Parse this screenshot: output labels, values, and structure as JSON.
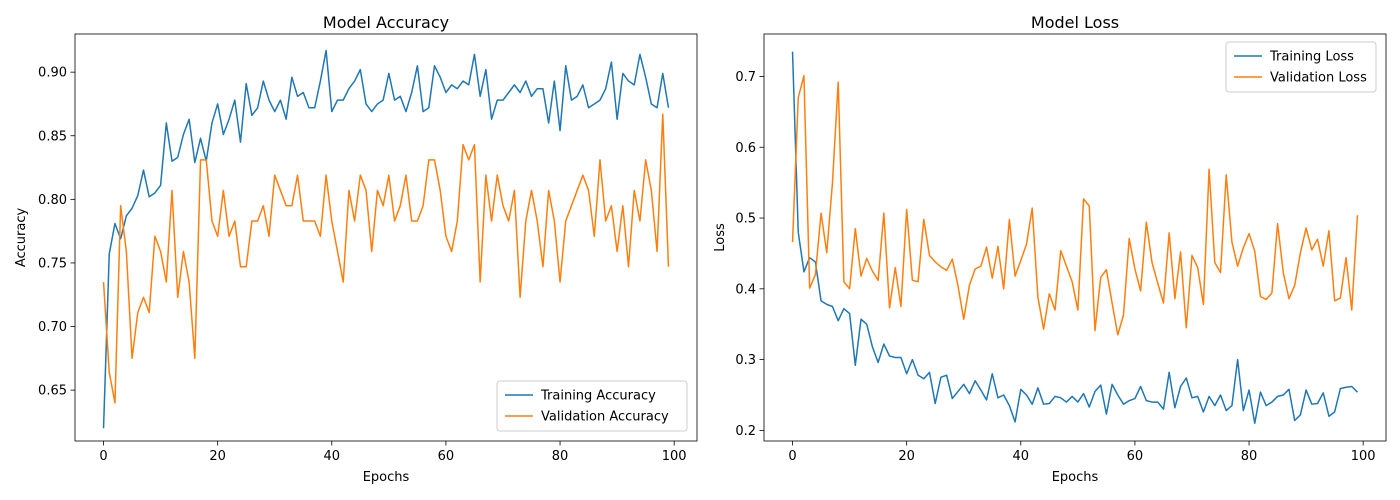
{
  "chart_data": [
    {
      "type": "line",
      "title": "Model Accuracy",
      "xlabel": "Epochs",
      "ylabel": "Accuracy",
      "xlim": [
        -5,
        104
      ],
      "ylim": [
        0.61,
        0.93
      ],
      "xticks": [
        0,
        20,
        40,
        60,
        80,
        100
      ],
      "yticks": [
        0.65,
        0.7,
        0.75,
        0.8,
        0.85,
        0.9
      ],
      "ytick_labels": [
        "0.65",
        "0.70",
        "0.75",
        "0.80",
        "0.85",
        "0.90"
      ],
      "grid": false,
      "legend_position": "lower-right",
      "series": [
        {
          "name": "Training Accuracy",
          "color": "#1f77b4",
          "values": [
            0.62,
            0.757,
            0.781,
            0.769,
            0.787,
            0.793,
            0.803,
            0.823,
            0.802,
            0.805,
            0.811,
            0.86,
            0.83,
            0.833,
            0.851,
            0.863,
            0.829,
            0.848,
            0.83,
            0.86,
            0.875,
            0.851,
            0.863,
            0.878,
            0.845,
            0.891,
            0.866,
            0.872,
            0.893,
            0.878,
            0.869,
            0.878,
            0.863,
            0.896,
            0.881,
            0.884,
            0.872,
            0.872,
            0.893,
            0.917,
            0.869,
            0.878,
            0.878,
            0.887,
            0.893,
            0.902,
            0.875,
            0.869,
            0.875,
            0.878,
            0.899,
            0.878,
            0.881,
            0.869,
            0.884,
            0.905,
            0.869,
            0.872,
            0.905,
            0.896,
            0.884,
            0.89,
            0.887,
            0.893,
            0.89,
            0.914,
            0.881,
            0.902,
            0.863,
            0.878,
            0.878,
            0.884,
            0.89,
            0.884,
            0.893,
            0.881,
            0.887,
            0.887,
            0.86,
            0.893,
            0.854,
            0.905,
            0.878,
            0.881,
            0.89,
            0.872,
            0.875,
            0.878,
            0.887,
            0.908,
            0.863,
            0.899,
            0.893,
            0.89,
            0.914,
            0.896,
            0.875,
            0.872,
            0.899,
            0.872
          ]
        },
        {
          "name": "Validation Accuracy",
          "color": "#ff7f0e",
          "values": [
            0.735,
            0.664,
            0.64,
            0.795,
            0.759,
            0.675,
            0.711,
            0.723,
            0.711,
            0.771,
            0.759,
            0.735,
            0.807,
            0.723,
            0.759,
            0.735,
            0.675,
            0.831,
            0.831,
            0.783,
            0.771,
            0.807,
            0.771,
            0.783,
            0.747,
            0.747,
            0.783,
            0.783,
            0.795,
            0.771,
            0.819,
            0.807,
            0.795,
            0.795,
            0.819,
            0.783,
            0.783,
            0.783,
            0.771,
            0.819,
            0.783,
            0.759,
            0.735,
            0.807,
            0.783,
            0.819,
            0.807,
            0.759,
            0.807,
            0.795,
            0.819,
            0.783,
            0.795,
            0.819,
            0.783,
            0.783,
            0.795,
            0.831,
            0.831,
            0.807,
            0.771,
            0.759,
            0.783,
            0.843,
            0.831,
            0.843,
            0.735,
            0.819,
            0.783,
            0.819,
            0.795,
            0.783,
            0.807,
            0.723,
            0.783,
            0.807,
            0.783,
            0.747,
            0.807,
            0.783,
            0.735,
            0.783,
            0.795,
            0.807,
            0.819,
            0.807,
            0.771,
            0.831,
            0.783,
            0.795,
            0.759,
            0.795,
            0.747,
            0.807,
            0.783,
            0.831,
            0.807,
            0.759,
            0.867,
            0.747
          ]
        }
      ]
    },
    {
      "type": "line",
      "title": "Model Loss",
      "xlabel": "Epochs",
      "ylabel": "Loss",
      "xlim": [
        -5,
        104
      ],
      "ylim": [
        0.185,
        0.76
      ],
      "xticks": [
        0,
        20,
        40,
        60,
        80,
        100
      ],
      "yticks": [
        0.2,
        0.3,
        0.4,
        0.5,
        0.6,
        0.7
      ],
      "ytick_labels": [
        "0.2",
        "0.3",
        "0.4",
        "0.5",
        "0.6",
        "0.7"
      ],
      "grid": false,
      "legend_position": "upper-right",
      "series": [
        {
          "name": "Training Loss",
          "color": "#1f77b4",
          "values": [
            0.735,
            0.48,
            0.424,
            0.444,
            0.438,
            0.383,
            0.378,
            0.375,
            0.355,
            0.372,
            0.365,
            0.292,
            0.357,
            0.35,
            0.318,
            0.296,
            0.322,
            0.305,
            0.303,
            0.303,
            0.28,
            0.3,
            0.278,
            0.273,
            0.282,
            0.238,
            0.275,
            0.278,
            0.245,
            0.255,
            0.265,
            0.252,
            0.27,
            0.257,
            0.243,
            0.28,
            0.246,
            0.25,
            0.235,
            0.212,
            0.258,
            0.25,
            0.237,
            0.26,
            0.237,
            0.238,
            0.248,
            0.246,
            0.24,
            0.248,
            0.24,
            0.252,
            0.233,
            0.255,
            0.264,
            0.223,
            0.265,
            0.25,
            0.237,
            0.242,
            0.245,
            0.262,
            0.242,
            0.24,
            0.24,
            0.23,
            0.282,
            0.232,
            0.262,
            0.274,
            0.246,
            0.248,
            0.226,
            0.248,
            0.235,
            0.25,
            0.228,
            0.235,
            0.3,
            0.228,
            0.257,
            0.21,
            0.254,
            0.235,
            0.24,
            0.248,
            0.25,
            0.258,
            0.214,
            0.222,
            0.257,
            0.237,
            0.238,
            0.253,
            0.22,
            0.226,
            0.259,
            0.261,
            0.262,
            0.254
          ]
        },
        {
          "name": "Validation Loss",
          "color": "#ff7f0e",
          "values": [
            0.466,
            0.67,
            0.701,
            0.401,
            0.42,
            0.507,
            0.451,
            0.55,
            0.692,
            0.41,
            0.4,
            0.485,
            0.418,
            0.443,
            0.425,
            0.412,
            0.507,
            0.373,
            0.43,
            0.375,
            0.512,
            0.412,
            0.41,
            0.498,
            0.447,
            0.438,
            0.431,
            0.426,
            0.442,
            0.404,
            0.357,
            0.405,
            0.428,
            0.432,
            0.459,
            0.415,
            0.46,
            0.4,
            0.498,
            0.418,
            0.44,
            0.463,
            0.514,
            0.388,
            0.343,
            0.393,
            0.37,
            0.454,
            0.432,
            0.41,
            0.37,
            0.527,
            0.517,
            0.341,
            0.416,
            0.427,
            0.38,
            0.335,
            0.363,
            0.471,
            0.428,
            0.397,
            0.494,
            0.437,
            0.408,
            0.38,
            0.479,
            0.386,
            0.452,
            0.345,
            0.447,
            0.43,
            0.378,
            0.569,
            0.437,
            0.423,
            0.561,
            0.466,
            0.432,
            0.458,
            0.478,
            0.453,
            0.389,
            0.385,
            0.394,
            0.492,
            0.423,
            0.386,
            0.405,
            0.451,
            0.486,
            0.455,
            0.47,
            0.432,
            0.482,
            0.383,
            0.387,
            0.444,
            0.37,
            0.504
          ]
        }
      ]
    }
  ]
}
